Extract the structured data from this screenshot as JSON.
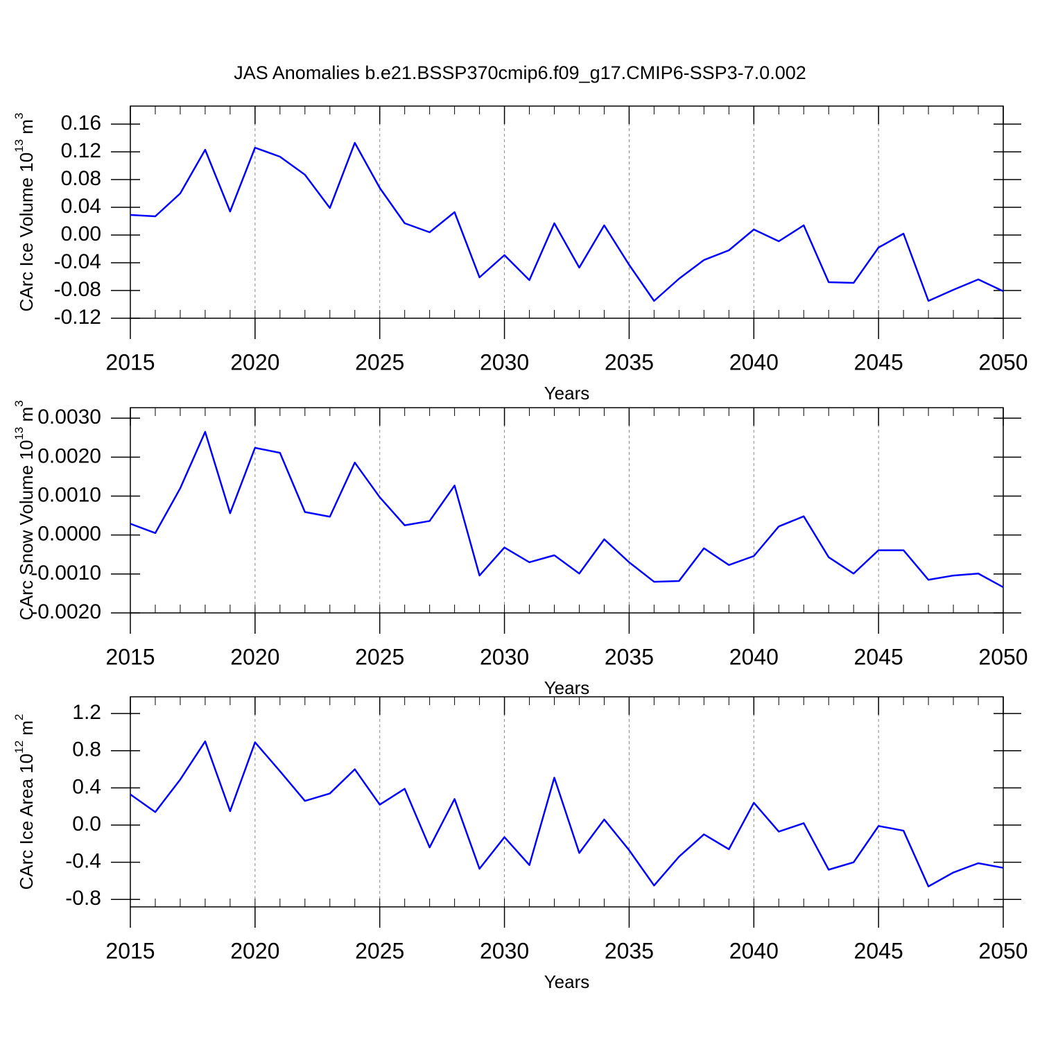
{
  "chart_data": [
    {
      "type": "line",
      "title": "JAS Anomalies b.e21.BSSP370cmip6.f09_g17.CMIP6-SSP3-7.0.002",
      "ylabel": {
        "text": "CArc Ice Volume 10",
        "exponent": "13",
        "unit": " m",
        "unit_power": "3"
      },
      "xlabel": "Years",
      "x": [
        2015,
        2016,
        2017,
        2018,
        2019,
        2020,
        2021,
        2022,
        2023,
        2024,
        2025,
        2026,
        2027,
        2028,
        2029,
        2030,
        2031,
        2032,
        2033,
        2034,
        2035,
        2036,
        2037,
        2038,
        2039,
        2040,
        2041,
        2042,
        2043,
        2044,
        2045,
        2046,
        2047,
        2048,
        2049,
        2050
      ],
      "values": [
        0.029,
        0.027,
        0.06,
        0.123,
        0.034,
        0.126,
        0.113,
        0.087,
        0.039,
        0.133,
        0.068,
        0.017,
        0.004,
        0.033,
        -0.061,
        -0.029,
        -0.065,
        0.017,
        -0.047,
        0.014,
        -0.043,
        -0.095,
        -0.063,
        -0.036,
        -0.022,
        0.008,
        -0.009,
        0.014,
        -0.068,
        -0.069,
        -0.018,
        0.002,
        -0.095,
        -0.079,
        -0.064,
        -0.081
      ],
      "color": "#0000ff",
      "xlim": [
        2015,
        2050
      ],
      "xticks": [
        2015,
        2020,
        2025,
        2030,
        2035,
        2040,
        2045,
        2050
      ],
      "ylim": [
        -0.12,
        0.186
      ],
      "yticks": [
        -0.12,
        -0.08,
        -0.04,
        {
          "value": 0,
          "label": "0.00"
        },
        0.04,
        0.08,
        0.12,
        0.16
      ],
      "grid": "x"
    },
    {
      "type": "line",
      "ylabel": {
        "text": "CArc Snow Volume 10",
        "exponent": "13",
        "unit": " m",
        "unit_power": "3"
      },
      "xlabel": "Years",
      "x": [
        2015,
        2016,
        2017,
        2018,
        2019,
        2020,
        2021,
        2022,
        2023,
        2024,
        2025,
        2026,
        2027,
        2028,
        2029,
        2030,
        2031,
        2032,
        2033,
        2034,
        2035,
        2036,
        2037,
        2038,
        2039,
        2040,
        2041,
        2042,
        2043,
        2044,
        2045,
        2046,
        2047,
        2048,
        2049,
        2050
      ],
      "values": [
        0.00029,
        5e-05,
        0.0012,
        0.00265,
        0.00056,
        0.00224,
        0.00211,
        0.00059,
        0.00047,
        0.00186,
        0.00097,
        0.00025,
        0.00036,
        0.00127,
        -0.00104,
        -0.00032,
        -0.0007,
        -0.00052,
        -0.00099,
        -0.00011,
        -0.0007,
        -0.0012,
        -0.00118,
        -0.00034,
        -0.00077,
        -0.00054,
        0.00022,
        0.00048,
        -0.00057,
        -0.00099,
        -0.00039,
        -0.00039,
        -0.00115,
        -0.00104,
        -0.00099,
        -0.00134
      ],
      "color": "#0000ff",
      "xlim": [
        2015,
        2050
      ],
      "xticks": [
        2015,
        2020,
        2025,
        2030,
        2035,
        2040,
        2045,
        2050
      ],
      "ylim": [
        -0.002,
        0.00327
      ],
      "yticks": [
        {
          "value": -0.002,
          "label": "-0.0020"
        },
        {
          "value": -0.001,
          "label": "-0.0010"
        },
        {
          "value": 0,
          "label": "0.0000"
        },
        {
          "value": 0.001,
          "label": "0.0010"
        },
        {
          "value": 0.002,
          "label": "0.0020"
        },
        {
          "value": 0.003,
          "label": "0.0030"
        }
      ],
      "grid": "x"
    },
    {
      "type": "line",
      "ylabel": {
        "text": "CArc Ice Area 10",
        "exponent": "12",
        "unit": " m",
        "unit_power": "2"
      },
      "xlabel": "Years",
      "x": [
        2015,
        2016,
        2017,
        2018,
        2019,
        2020,
        2021,
        2022,
        2023,
        2024,
        2025,
        2026,
        2027,
        2028,
        2029,
        2030,
        2031,
        2032,
        2033,
        2034,
        2035,
        2036,
        2037,
        2038,
        2039,
        2040,
        2041,
        2042,
        2043,
        2044,
        2045,
        2046,
        2047,
        2048,
        2049,
        2050
      ],
      "values": [
        0.33,
        0.14,
        0.49,
        0.9,
        0.15,
        0.89,
        0.58,
        0.26,
        0.34,
        0.6,
        0.22,
        0.39,
        -0.24,
        0.28,
        -0.47,
        -0.13,
        -0.43,
        0.51,
        -0.3,
        0.06,
        -0.27,
        -0.65,
        -0.34,
        -0.1,
        -0.26,
        0.24,
        -0.07,
        0.02,
        -0.48,
        -0.4,
        -0.01,
        -0.06,
        -0.66,
        -0.51,
        -0.41,
        -0.46
      ],
      "color": "#0000ff",
      "xlim": [
        2015,
        2050
      ],
      "xticks": [
        2015,
        2020,
        2025,
        2030,
        2035,
        2040,
        2045,
        2050
      ],
      "ylim": [
        -0.88,
        1.38
      ],
      "yticks": [
        -0.8,
        -0.4,
        {
          "value": 0,
          "label": "0.0"
        },
        0.4,
        0.8,
        1.2
      ],
      "grid": "x"
    }
  ]
}
